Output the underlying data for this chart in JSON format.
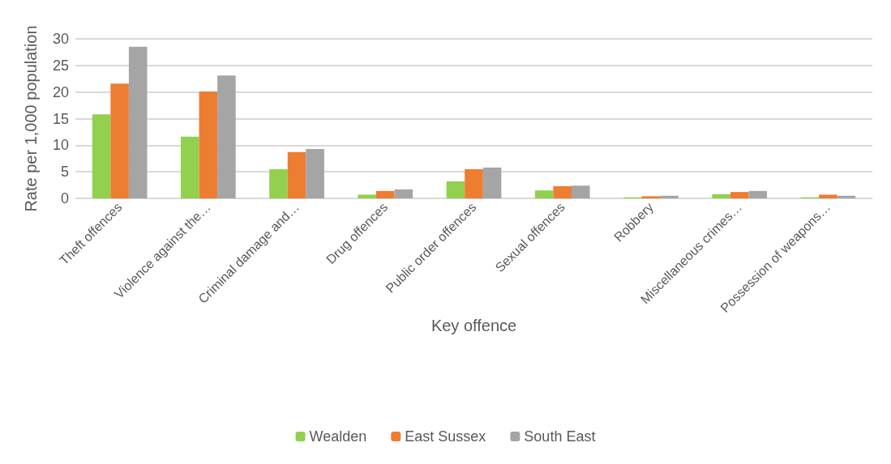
{
  "chart_data": {
    "type": "bar",
    "xlabel": "Key offence",
    "ylabel": "Rate per 1,000 population",
    "categories": [
      "Theft offences",
      "Violence against the…",
      "Criminal damage and…",
      "Drug offences",
      "Public order offences",
      "Sexual offences",
      "Robbery",
      "Miscellaneous crimes…",
      "Possession of weapons…"
    ],
    "series": [
      {
        "name": "Wealden",
        "color": "#92d050",
        "values": [
          15.8,
          11.6,
          5.5,
          0.7,
          3.2,
          1.5,
          0.2,
          0.8,
          0.2
        ]
      },
      {
        "name": "East Sussex",
        "color": "#ed7d31",
        "values": [
          21.6,
          20.1,
          8.7,
          1.4,
          5.5,
          2.3,
          0.4,
          1.2,
          0.7
        ]
      },
      {
        "name": "South East",
        "color": "#a5a5a5",
        "values": [
          28.5,
          23.1,
          9.3,
          1.7,
          5.8,
          2.4,
          0.5,
          1.4,
          0.5
        ]
      }
    ],
    "ylim": [
      0,
      30
    ],
    "yticks": [
      0,
      5,
      10,
      15,
      20,
      25,
      30
    ],
    "grid": "y",
    "legend": "bottom"
  }
}
